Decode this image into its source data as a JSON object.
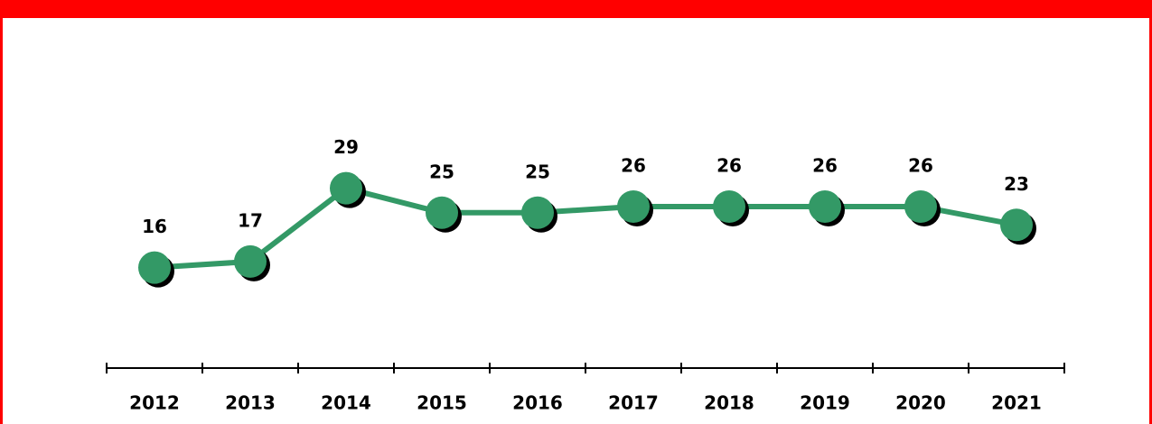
{
  "chart_data": {
    "type": "line",
    "categories": [
      "2012",
      "2013",
      "2014",
      "2015",
      "2016",
      "2017",
      "2018",
      "2019",
      "2020",
      "2021"
    ],
    "series": [
      {
        "color": "#339966",
        "values": [
          16,
          17,
          29,
          25,
          25,
          26,
          26,
          26,
          26,
          23
        ]
      }
    ]
  }
}
